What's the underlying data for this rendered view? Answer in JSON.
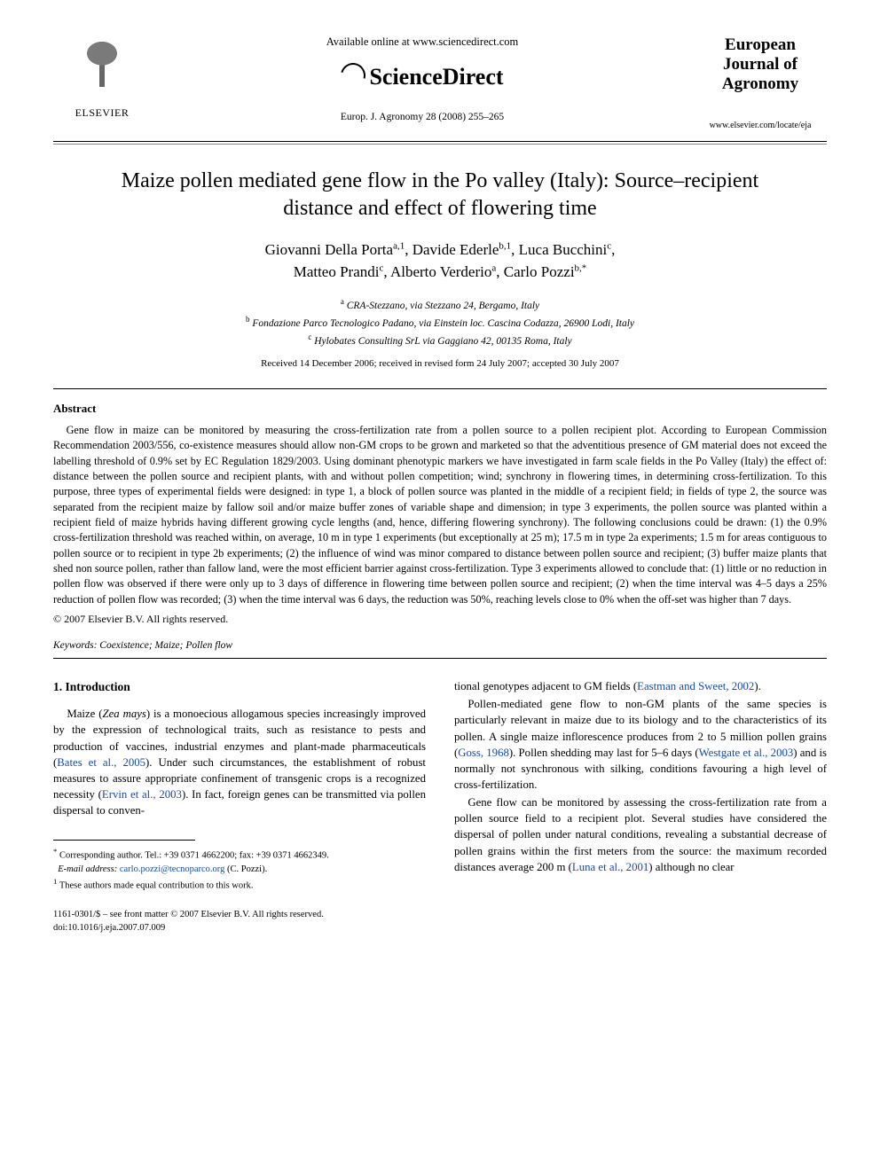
{
  "header": {
    "elsevier_label": "ELSEVIER",
    "available_line": "Available online at www.sciencedirect.com",
    "sd_brand": "ScienceDirect",
    "citation": "Europ. J. Agronomy 28 (2008) 255–265",
    "journal_name_l1": "European",
    "journal_name_l2": "Journal of",
    "journal_name_l3": "Agronomy",
    "journal_url": "www.elsevier.com/locate/eja"
  },
  "title": "Maize pollen mediated gene flow in the Po valley (Italy): Source–recipient distance and effect of flowering time",
  "authors_html": [
    {
      "name": "Giovanni Della Porta",
      "aff": "a,1"
    },
    {
      "name": "Davide Ederle",
      "aff": "b,1"
    },
    {
      "name": "Luca Bucchini",
      "aff": "c"
    },
    {
      "name": "Matteo Prandi",
      "aff": "c"
    },
    {
      "name": "Alberto Verderio",
      "aff": "a"
    },
    {
      "name": "Carlo Pozzi",
      "aff": "b,*"
    }
  ],
  "affiliations": {
    "a": "CRA-Stezzano, via Stezzano 24, Bergamo, Italy",
    "b": "Fondazione Parco Tecnologico Padano, via Einstein loc. Cascina Codazza, 26900 Lodi, Italy",
    "c": "Hylobates Consulting SrL via Gaggiano 42, 00135 Roma, Italy"
  },
  "dates": "Received 14 December 2006; received in revised form 24 July 2007; accepted 30 July 2007",
  "abstract": {
    "heading": "Abstract",
    "body": "Gene flow in maize can be monitored by measuring the cross-fertilization rate from a pollen source to a pollen recipient plot. According to European Commission Recommendation 2003/556, co-existence measures should allow non-GM crops to be grown and marketed so that the adventitious presence of GM material does not exceed the labelling threshold of 0.9% set by EC Regulation 1829/2003. Using dominant phenotypic markers we have investigated in farm scale fields in the Po Valley (Italy) the effect of: distance between the pollen source and recipient plants, with and without pollen competition; wind; synchrony in flowering times, in determining cross-fertilization. To this purpose, three types of experimental fields were designed: in type 1, a block of pollen source was planted in the middle of a recipient field; in fields of type 2, the source was separated from the recipient maize by fallow soil and/or maize buffer zones of variable shape and dimension; in type 3 experiments, the pollen source was planted within a recipient field of maize hybrids having different growing cycle lengths (and, hence, differing flowering synchrony). The following conclusions could be drawn: (1) the 0.9% cross-fertilization threshold was reached within, on average, 10 m in type 1 experiments (but exceptionally at 25 m); 17.5 m in type 2a experiments; 1.5 m for areas contiguous to pollen source or to recipient in type 2b experiments; (2) the influence of wind was minor compared to distance between pollen source and recipient; (3) buffer maize plants that shed non source pollen, rather than fallow land, were the most efficient barrier against cross-fertilization. Type 3 experiments allowed to conclude that: (1) little or no reduction in pollen flow was observed if there were only up to 3 days of difference in flowering time between pollen source and recipient; (2) when the time interval was 4–5 days a 25% reduction of pollen flow was recorded; (3) when the time interval was 6 days, the reduction was 50%, reaching levels close to 0% when the off-set was higher than 7 days.",
    "copyright": "© 2007 Elsevier B.V. All rights reserved."
  },
  "keywords": {
    "label": "Keywords:",
    "value": "Coexistence; Maize; Pollen flow"
  },
  "introduction": {
    "heading": "1.  Introduction",
    "left_paras": [
      "Maize (Zea mays) is a monoecious allogamous species increasingly improved by the expression of technological traits, such as resistance to pests and production of vaccines, industrial enzymes and plant-made pharmaceuticals (Bates et al., 2005). Under such circumstances, the establishment of robust measures to assure appropriate confinement of transgenic crops is a recognized necessity (Ervin et al., 2003). In fact, foreign genes can be transmitted via pollen dispersal to conven-"
    ],
    "right_paras": [
      "tional genotypes adjacent to GM fields (Eastman and Sweet, 2002).",
      "Pollen-mediated gene flow to non-GM plants of the same species is particularly relevant in maize due to its biology and to the characteristics of its pollen. A single maize inflorescence produces from 2 to 5 million pollen grains (Goss, 1968). Pollen shedding may last for 5–6 days (Westgate et al., 2003) and is normally not synchronous with silking, conditions favouring a high level of cross-fertilization.",
      "Gene flow can be monitored by assessing the cross-fertilization rate from a pollen source field to a recipient plot. Several studies have considered the dispersal of pollen under natural conditions, revealing a substantial decrease of pollen grains within the first meters from the source: the maximum recorded distances average 200 m (Luna et al., 2001) although no clear"
    ],
    "ref_links": [
      "Bates et al., 2005",
      "Ervin et al., 2003",
      "Eastman and Sweet, 2002",
      "Goss, 1968",
      "Westgate et al., 2003",
      "Luna et al., 2001"
    ]
  },
  "footnotes": {
    "corr": "Corresponding author. Tel.: +39 0371 4662200; fax: +39 0371 4662349.",
    "email_label": "E-mail address:",
    "email": "carlo.pozzi@tecnoparco.org",
    "email_who": "(C. Pozzi).",
    "equal": "These authors made equal contribution to this work."
  },
  "bottom": {
    "issn_line": "1161-0301/$ – see front matter © 2007 Elsevier B.V. All rights reserved.",
    "doi": "doi:10.1016/j.eja.2007.07.009"
  },
  "colors": {
    "link": "#1a4aa8",
    "text": "#000000",
    "bg": "#ffffff"
  }
}
